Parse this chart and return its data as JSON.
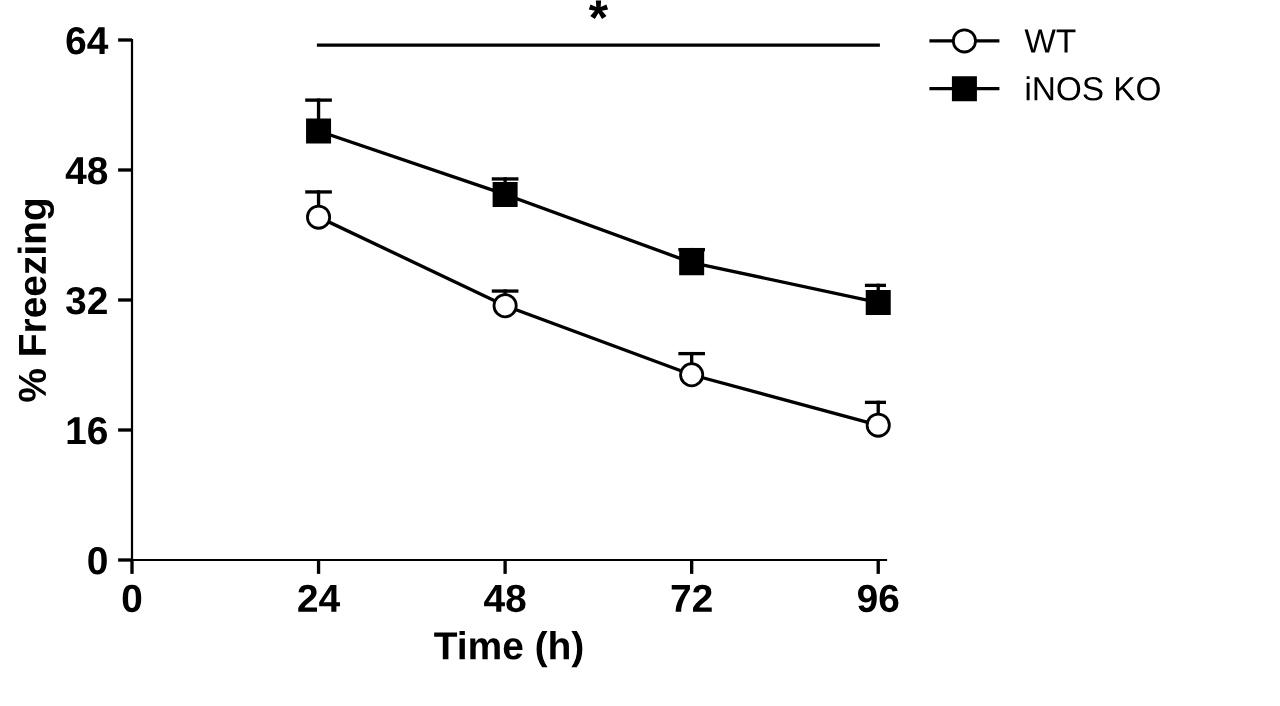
{
  "chart_data": {
    "type": "line",
    "xlabel": "Time (h)",
    "ylabel": "% Freezing",
    "x": [
      24,
      48,
      72,
      96
    ],
    "series": [
      {
        "name": "WT",
        "color": "#000000",
        "marker": "circle",
        "values": [
          42.2,
          31.3,
          22.8,
          16.6
        ],
        "errors": [
          [
            42.2,
            45.3
          ],
          [
            31.3,
            33.1
          ],
          [
            22.8,
            25.4
          ],
          [
            16.6,
            19.4
          ]
        ]
      },
      {
        "name": "iNOS KO",
        "color": "#000000",
        "marker": "square",
        "values": [
          52.8,
          45.0,
          36.6,
          31.7
        ],
        "errors": [
          [
            52.8,
            56.6
          ],
          [
            45.0,
            46.9
          ],
          [
            36.6,
            38.2
          ],
          [
            31.7,
            33.8
          ]
        ]
      }
    ],
    "xlim": [
      0,
      97
    ],
    "xticks": [
      0,
      24,
      48,
      72,
      96
    ],
    "ylim": [
      0,
      64
    ],
    "yticks": [
      0,
      16,
      32,
      48,
      64
    ],
    "annotations": [
      "*"
    ],
    "legend": "top right",
    "grid": false,
    "line_style": "solid"
  }
}
